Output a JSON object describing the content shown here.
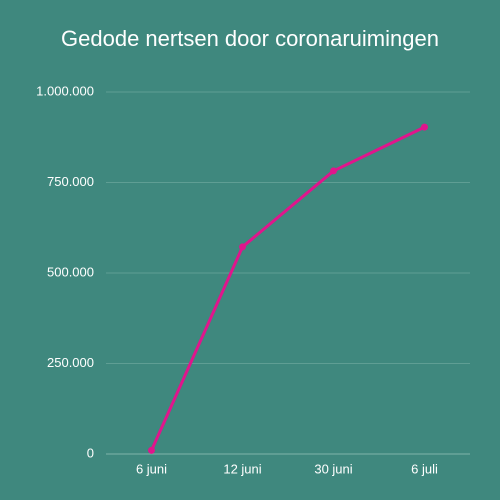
{
  "chart_data": {
    "type": "line",
    "title": "Gedode nertsen door coronaruimingen",
    "categories": [
      "6 juni",
      "12 juni",
      "30 juni",
      "6 juli"
    ],
    "series": [
      {
        "name": "Gedode nertsen",
        "color": "#e0158c",
        "values": [
          10000,
          572000,
          782000,
          903000
        ]
      }
    ],
    "ylim": [
      0,
      1000000
    ],
    "yticks": [
      0,
      {
        "value": 250000,
        "label": "250.000"
      },
      {
        "value": 500000,
        "label": "500.000"
      },
      {
        "value": 750000,
        "label": "750.000"
      },
      {
        "value": 1000000,
        "label": "1.000.000"
      }
    ],
    "grid": true
  }
}
